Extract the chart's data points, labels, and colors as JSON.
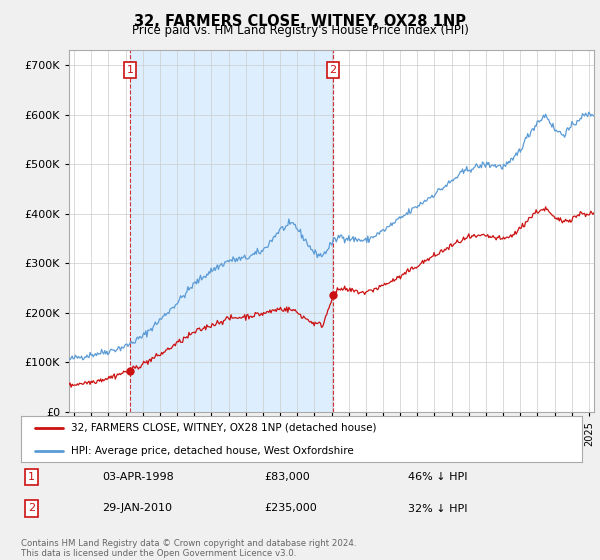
{
  "title": "32, FARMERS CLOSE, WITNEY, OX28 1NP",
  "subtitle": "Price paid vs. HM Land Registry's House Price Index (HPI)",
  "ylim": [
    0,
    730000
  ],
  "yticks": [
    0,
    100000,
    200000,
    300000,
    400000,
    500000,
    600000,
    700000
  ],
  "xlim_start": 1994.7,
  "xlim_end": 2025.3,
  "hpi_color": "#5B9BD5",
  "hpi_fill_color": "#DDEEFF",
  "price_color": "#CC1111",
  "marker1_date": 1998.25,
  "marker1_price": 83000,
  "marker2_date": 2010.08,
  "marker2_price": 235000,
  "vline1_date": 1998.25,
  "vline2_date": 2010.08,
  "legend_price_label": "32, FARMERS CLOSE, WITNEY, OX28 1NP (detached house)",
  "legend_hpi_label": "HPI: Average price, detached house, West Oxfordshire",
  "footer": "Contains HM Land Registry data © Crown copyright and database right 2024.\nThis data is licensed under the Open Government Licence v3.0.",
  "table_row1": [
    "1",
    "03-APR-1998",
    "£83,000",
    "46% ↓ HPI"
  ],
  "table_row2": [
    "2",
    "29-JAN-2010",
    "£235,000",
    "32% ↓ HPI"
  ],
  "background_color": "#f0f0f0",
  "plot_bg_color": "#ffffff"
}
